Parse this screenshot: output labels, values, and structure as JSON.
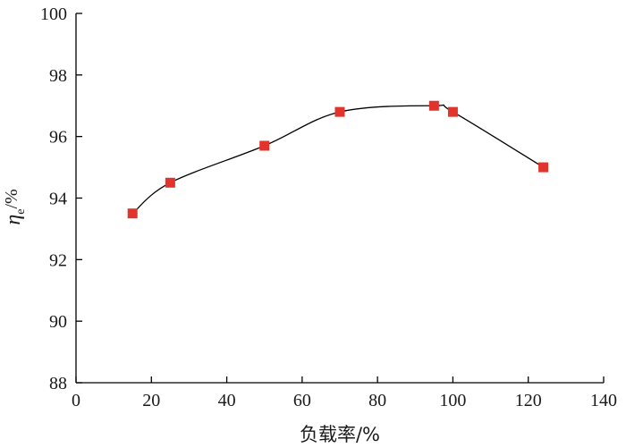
{
  "chart_data": {
    "type": "line",
    "title": "",
    "xlabel": "负载率/%",
    "ylabel": {
      "symbol": "η",
      "subscript": "e",
      "unit": "/%"
    },
    "xlim": [
      0,
      140
    ],
    "ylim": [
      88,
      100
    ],
    "x_ticks": [
      0,
      20,
      40,
      60,
      80,
      100,
      120,
      140
    ],
    "y_ticks": [
      88,
      90,
      92,
      94,
      96,
      98,
      100
    ],
    "grid": false,
    "legend": "none",
    "series": [
      {
        "marker": "square",
        "marker_color": "#e0342c",
        "line_color": "#000000",
        "smooth": true,
        "x": [
          15,
          25,
          50,
          70,
          95,
          100,
          124
        ],
        "y": [
          93.5,
          94.5,
          95.7,
          96.8,
          97.0,
          96.8,
          95.0
        ]
      }
    ]
  }
}
